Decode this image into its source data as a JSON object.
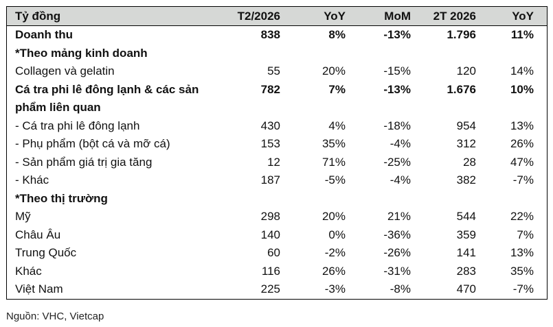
{
  "header": [
    "Tỷ đồng",
    "T2/2026",
    "YoY",
    "MoM",
    "2T 2026",
    "YoY"
  ],
  "rows": [
    {
      "label": "Doanh thu",
      "values": [
        "838",
        "8%",
        "-13%",
        "1.796",
        "11%"
      ],
      "bold": true
    },
    {
      "label": "*Theo mảng kinh doanh",
      "values": [
        "",
        "",
        "",
        "",
        ""
      ],
      "bold": true
    },
    {
      "label": "Collagen và gelatin",
      "values": [
        "55",
        "20%",
        "-15%",
        "120",
        "14%"
      ],
      "bold": false
    },
    {
      "label": "Cá tra phi lê đông lạnh & các sản",
      "label2": "phẩm liên quan",
      "values": [
        "782",
        "7%",
        "-13%",
        "1.676",
        "10%"
      ],
      "bold": true
    },
    {
      "label": " - Cá tra phi lê đông lạnh",
      "values": [
        "430",
        "4%",
        "-18%",
        "954",
        "13%"
      ],
      "bold": false
    },
    {
      "label": " - Phụ phẩm (bột cá và mỡ cá)",
      "values": [
        "153",
        "35%",
        "-4%",
        "312",
        "26%"
      ],
      "bold": false
    },
    {
      "label": " - Sản phẩm giá trị gia tăng",
      "values": [
        "12",
        "71%",
        "-25%",
        "28",
        "47%"
      ],
      "bold": false
    },
    {
      "label": " - Khác",
      "values": [
        "187",
        "-5%",
        "-4%",
        "382",
        "-7%"
      ],
      "bold": false
    },
    {
      "label": "*Theo thị trường",
      "values": [
        "",
        "",
        "",
        "",
        ""
      ],
      "bold": true
    },
    {
      "label": "Mỹ",
      "values": [
        "298",
        "20%",
        "21%",
        "544",
        "22%"
      ],
      "bold": false
    },
    {
      "label": "Châu Âu",
      "values": [
        "140",
        "0%",
        "-36%",
        "359",
        "7%"
      ],
      "bold": false
    },
    {
      "label": "Trung Quốc",
      "values": [
        "60",
        "-2%",
        "-26%",
        "141",
        "13%"
      ],
      "bold": false
    },
    {
      "label": "Khác",
      "values": [
        "116",
        "26%",
        "-31%",
        "283",
        "35%"
      ],
      "bold": false
    },
    {
      "label": "Việt Nam",
      "values": [
        "225",
        "-3%",
        "-8%",
        "470",
        "-7%"
      ],
      "bold": false
    }
  ],
  "source": "Nguồn: VHC, Vietcap"
}
